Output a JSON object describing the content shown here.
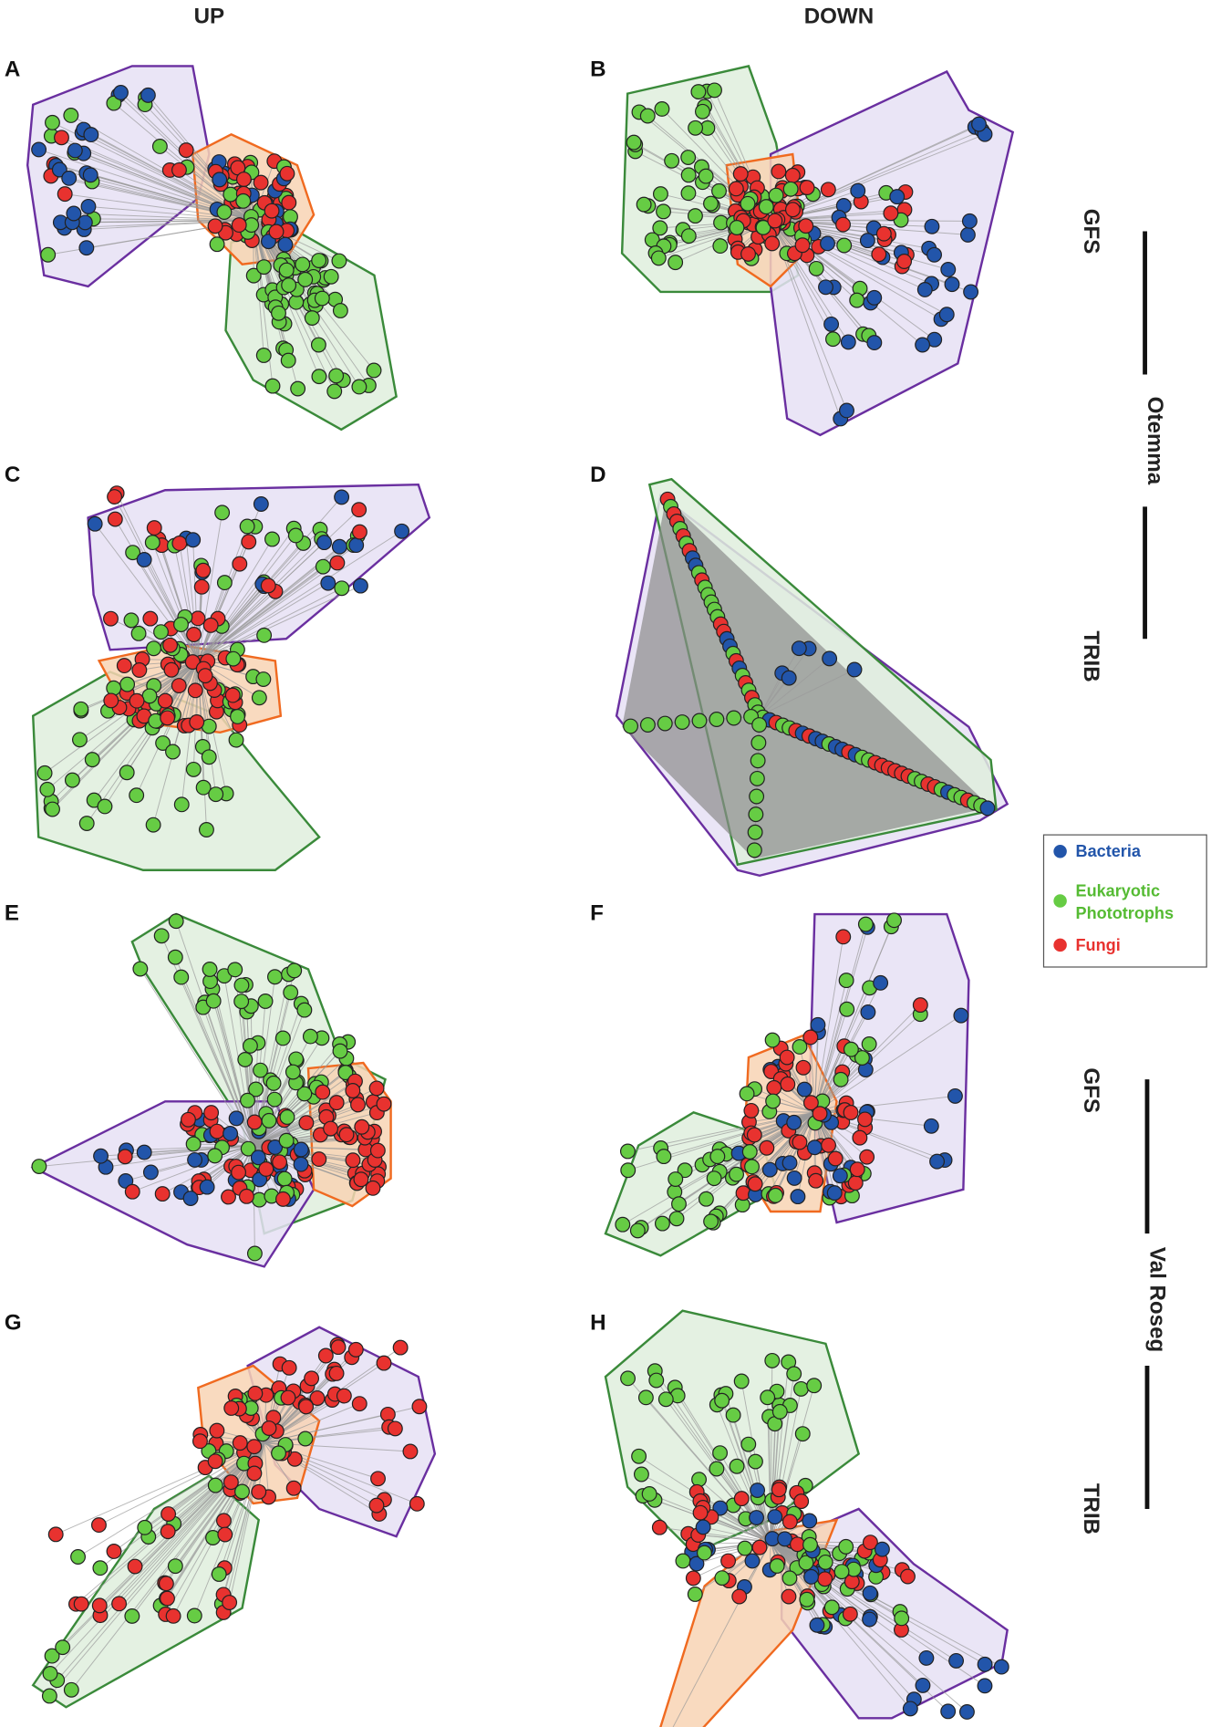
{
  "column_headers": [
    "UP",
    "DOWN"
  ],
  "panel_labels": [
    "A",
    "B",
    "C",
    "D",
    "E",
    "F",
    "G",
    "H"
  ],
  "sites": [
    {
      "name": "Otemma",
      "rows": [
        "GFS",
        "TRIB"
      ]
    },
    {
      "name": "Val Roseg",
      "rows": [
        "GFS",
        "TRIB"
      ]
    }
  ],
  "legend": {
    "bacteria": "Bacteria",
    "phototrophs": [
      "Eukaryotic",
      "Phototrophs"
    ],
    "fungi": "Fungi"
  }
}
